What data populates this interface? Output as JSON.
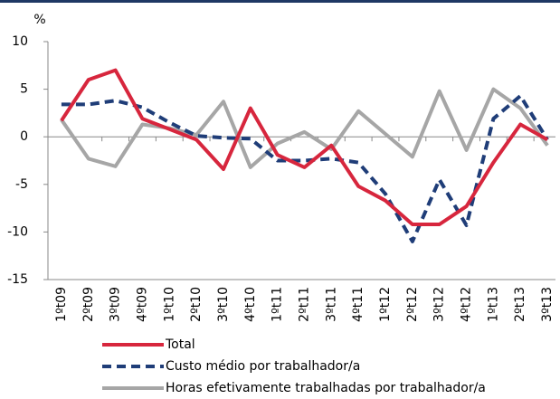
{
  "chart_data": {
    "type": "line",
    "y_label": "%",
    "categories": [
      "1ºt09",
      "2ºt09",
      "3ºt09",
      "4ºt09",
      "1ºt10",
      "2ºt10",
      "3ºt10",
      "4ºt10",
      "1ºt11",
      "2ºt11",
      "3ºt11",
      "4ºt11",
      "1ºt12",
      "2ºt12",
      "3ºt12",
      "4ºt12",
      "1ºt13",
      "2ºt13",
      "3ºt13"
    ],
    "series": [
      {
        "name": "Total",
        "color": "#d7263d",
        "dash": false,
        "values": [
          1.7,
          6.0,
          7.0,
          1.9,
          0.8,
          -0.3,
          -3.4,
          3.0,
          -1.9,
          -3.2,
          -0.9,
          -5.2,
          -6.7,
          -9.2,
          -9.2,
          -7.3,
          -2.7,
          1.3,
          -0.3
        ]
      },
      {
        "name": "Custo médio por trabalhador/a",
        "color": "#1f3d78",
        "dash": true,
        "values": [
          3.4,
          3.4,
          3.8,
          3.1,
          1.5,
          0.1,
          -0.1,
          -0.2,
          -2.5,
          -2.5,
          -2.3,
          -2.7,
          -6.0,
          -11.0,
          -4.5,
          -9.3,
          1.9,
          4.3,
          -0.3
        ]
      },
      {
        "name": "Horas efetivamente trabalhadas por trabalhador/a",
        "color": "#a6a6a6",
        "dash": false,
        "values": [
          1.8,
          -2.3,
          -3.1,
          1.3,
          0.9,
          0.2,
          3.7,
          -3.2,
          -0.7,
          0.5,
          -1.3,
          2.7,
          0.3,
          -2.1,
          4.8,
          -1.4,
          5.0,
          3.0,
          -0.9
        ]
      }
    ],
    "ylim": [
      -15,
      10
    ],
    "yticks": [
      -15,
      -10,
      -5,
      0,
      5,
      10
    ]
  }
}
